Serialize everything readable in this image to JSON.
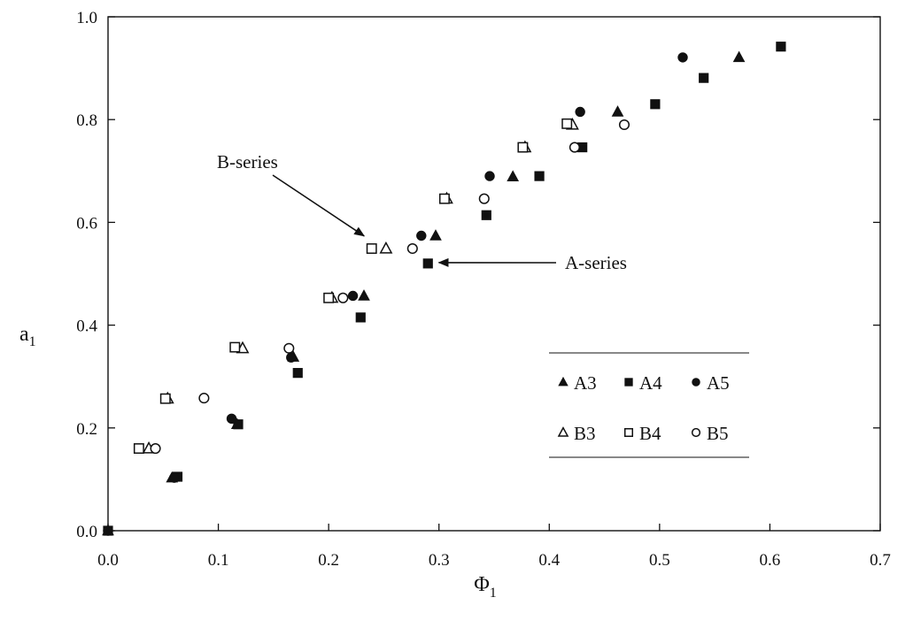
{
  "chart_data": {
    "type": "scatter",
    "title": "",
    "xlabel": "Φ",
    "xlabel_subscript": "1",
    "ylabel": "a",
    "ylabel_subscript": "1",
    "xlim": [
      0.0,
      0.7
    ],
    "ylim": [
      0.0,
      1.0
    ],
    "xticks": [
      "0.0",
      "0.1",
      "0.2",
      "0.3",
      "0.4",
      "0.5",
      "0.6",
      "0.7"
    ],
    "yticks": [
      "0.0",
      "0.2",
      "0.4",
      "0.6",
      "0.8",
      "1.0"
    ],
    "grid": false,
    "legend_position": "right",
    "legend": {
      "rows": [
        [
          "A3",
          "A4",
          "A5"
        ],
        [
          "B3",
          "B4",
          "B5"
        ]
      ]
    },
    "annotations": [
      {
        "text": "B-series",
        "points_to": [
          0.237,
          0.57
        ]
      },
      {
        "text": "A-series",
        "points_to": [
          0.295,
          0.52
        ]
      }
    ],
    "series": [
      {
        "name": "A3",
        "marker": "filled-triangle",
        "x": [
          0.0,
          0.058,
          0.117,
          0.168,
          0.232,
          0.297,
          0.367,
          0.462,
          0.572
        ],
        "y": [
          0.0,
          0.103,
          0.207,
          0.338,
          0.457,
          0.574,
          0.689,
          0.815,
          0.921
        ]
      },
      {
        "name": "A4",
        "marker": "filled-square",
        "x": [
          0.0,
          0.063,
          0.118,
          0.172,
          0.229,
          0.29,
          0.343,
          0.391,
          0.43,
          0.496,
          0.54,
          0.61
        ],
        "y": [
          0.0,
          0.105,
          0.207,
          0.307,
          0.415,
          0.52,
          0.614,
          0.69,
          0.746,
          0.83,
          0.881,
          0.942
        ]
      },
      {
        "name": "A5",
        "marker": "filled-circle",
        "x": [
          0.0,
          0.06,
          0.112,
          0.166,
          0.222,
          0.284,
          0.346,
          0.428,
          0.521
        ],
        "y": [
          0.0,
          0.103,
          0.218,
          0.337,
          0.457,
          0.574,
          0.69,
          0.815,
          0.921
        ]
      },
      {
        "name": "B3",
        "marker": "open-triangle",
        "x": [
          0.037,
          0.054,
          0.122,
          0.203,
          0.252,
          0.307,
          0.378,
          0.421
        ],
        "y": [
          0.16,
          0.257,
          0.355,
          0.453,
          0.549,
          0.646,
          0.746,
          0.79
        ]
      },
      {
        "name": "B4",
        "marker": "open-square",
        "x": [
          0.028,
          0.052,
          0.115,
          0.2,
          0.239,
          0.305,
          0.376,
          0.416
        ],
        "y": [
          0.16,
          0.257,
          0.357,
          0.453,
          0.549,
          0.646,
          0.746,
          0.792
        ]
      },
      {
        "name": "B5",
        "marker": "open-circle",
        "x": [
          0.043,
          0.087,
          0.164,
          0.213,
          0.276,
          0.341,
          0.423,
          0.468
        ],
        "y": [
          0.16,
          0.258,
          0.355,
          0.453,
          0.549,
          0.646,
          0.746,
          0.79
        ]
      }
    ]
  }
}
